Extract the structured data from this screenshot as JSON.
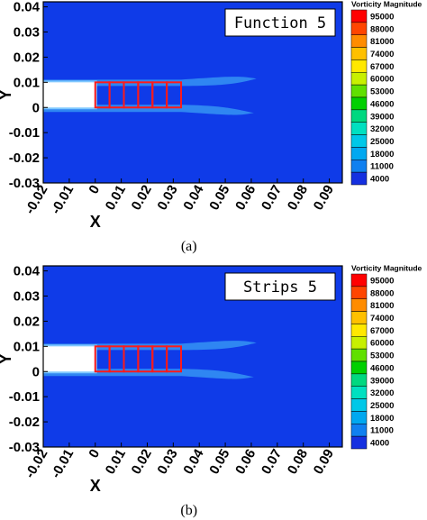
{
  "chart_data": [
    {
      "type": "heatmap",
      "caption": "(a)",
      "annotation": "Function 5",
      "xlabel": "X",
      "ylabel": "Y",
      "xlim": [
        -0.02,
        0.095
      ],
      "ylim": [
        -0.03,
        0.042
      ],
      "x_ticks": [
        "-0.02",
        "-0.01",
        "0",
        "0.01",
        "0.02",
        "0.03",
        "0.04",
        "0.05",
        "0.06",
        "0.07",
        "0.08",
        "0.09"
      ],
      "y_ticks": [
        "0.04",
        "0.03",
        "0.02",
        "0.01",
        "0",
        "-0.01",
        "-0.02",
        "-0.03"
      ],
      "legend_title": "Vorticity Magnitude",
      "legend_levels": [
        "95000",
        "88000",
        "81000",
        "74000",
        "67000",
        "60000",
        "53000",
        "46000",
        "39000",
        "32000",
        "25000",
        "18000",
        "11000",
        "4000"
      ],
      "plate": {
        "x_start": -0.02,
        "x_end": 0.0,
        "y_bottom": 0.0,
        "y_top": 0.01
      },
      "strips": {
        "x_start": 0.0,
        "x_end": 0.033,
        "y_bottom": 0.0,
        "y_top": 0.01,
        "count": 6
      }
    },
    {
      "type": "heatmap",
      "caption": "(b)",
      "annotation": "Strips 5",
      "xlabel": "X",
      "ylabel": "Y",
      "xlim": [
        -0.02,
        0.095
      ],
      "ylim": [
        -0.03,
        0.042
      ],
      "x_ticks": [
        "-0.02",
        "-0.01",
        "0",
        "0.01",
        "0.02",
        "0.03",
        "0.04",
        "0.05",
        "0.06",
        "0.07",
        "0.08",
        "0.09"
      ],
      "y_ticks": [
        "0.04",
        "0.03",
        "0.02",
        "0.01",
        "0",
        "-0.01",
        "-0.02",
        "-0.03"
      ],
      "legend_title": "Vorticity Magnitude",
      "legend_levels": [
        "95000",
        "88000",
        "81000",
        "74000",
        "67000",
        "60000",
        "53000",
        "46000",
        "39000",
        "32000",
        "25000",
        "18000",
        "11000",
        "4000"
      ],
      "plate": {
        "x_start": -0.02,
        "x_end": 0.0,
        "y_bottom": 0.0,
        "y_top": 0.01
      },
      "strips": {
        "x_start": 0.0,
        "x_end": 0.033,
        "y_bottom": 0.0,
        "y_top": 0.01,
        "count": 6
      }
    }
  ],
  "colors": {
    "background_field": "#0f3be8",
    "wake": "#2f86f2",
    "plate": "#ffffff",
    "strip_outline": "#ff1a1a",
    "legend_scale": [
      "#ff0000",
      "#ff4500",
      "#ff8c00",
      "#ffc000",
      "#ffe800",
      "#c8f000",
      "#60e000",
      "#00d000",
      "#00d880",
      "#00e0c0",
      "#00c8e8",
      "#00a8f0",
      "#1080f0",
      "#1530e0"
    ]
  }
}
